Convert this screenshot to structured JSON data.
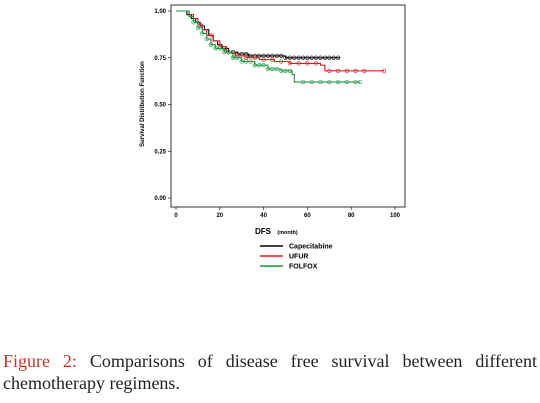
{
  "chart_data": {
    "type": "line",
    "step": true,
    "ylabel": "Survival Distribution Function",
    "xlabel": "DFS",
    "xlabel_unit": "(month)",
    "xlim": [
      0,
      100
    ],
    "ylim": [
      0,
      1
    ],
    "xticks": [
      0,
      20,
      40,
      60,
      80,
      100
    ],
    "yticks": [
      0.0,
      0.25,
      0.5,
      0.75,
      1.0
    ],
    "ytick_labels": [
      "0.00",
      "0.25",
      "0.50",
      "0.75",
      "1.00"
    ],
    "grid": false,
    "legend_position": "below",
    "series": [
      {
        "name": "Capecitabine",
        "color": "#000000",
        "points": [
          [
            0,
            1.0
          ],
          [
            3,
            1.0
          ],
          [
            5,
            0.98
          ],
          [
            7,
            0.96
          ],
          [
            9,
            0.94
          ],
          [
            11,
            0.92
          ],
          [
            13,
            0.9
          ],
          [
            15,
            0.87
          ],
          [
            17,
            0.84
          ],
          [
            19,
            0.82
          ],
          [
            21,
            0.8
          ],
          [
            24,
            0.78
          ],
          [
            28,
            0.77
          ],
          [
            33,
            0.76
          ],
          [
            38,
            0.76
          ],
          [
            44,
            0.76
          ],
          [
            50,
            0.75
          ],
          [
            58,
            0.75
          ],
          [
            66,
            0.75
          ],
          [
            75,
            0.75
          ]
        ],
        "censored": [
          22,
          24,
          26,
          28,
          30,
          32,
          34,
          36,
          38,
          40,
          42,
          44,
          46,
          48,
          50,
          52,
          54,
          56,
          58,
          60,
          62,
          64,
          66,
          68,
          70,
          72,
          74
        ]
      },
      {
        "name": "UFUR",
        "color": "#e31a1c",
        "points": [
          [
            0,
            1.0
          ],
          [
            4,
            1.0
          ],
          [
            6,
            0.98
          ],
          [
            8,
            0.96
          ],
          [
            10,
            0.93
          ],
          [
            12,
            0.9
          ],
          [
            14,
            0.87
          ],
          [
            17,
            0.84
          ],
          [
            20,
            0.81
          ],
          [
            23,
            0.78
          ],
          [
            27,
            0.76
          ],
          [
            32,
            0.75
          ],
          [
            38,
            0.74
          ],
          [
            45,
            0.73
          ],
          [
            52,
            0.72
          ],
          [
            60,
            0.72
          ],
          [
            66,
            0.71
          ],
          [
            68,
            0.68
          ],
          [
            95,
            0.68
          ]
        ],
        "censored": [
          16,
          20,
          24,
          28,
          32,
          36,
          40,
          44,
          48,
          52,
          56,
          60,
          64,
          70,
          74,
          78,
          82,
          86,
          95
        ]
      },
      {
        "name": "FOLFOX",
        "color": "#1a9641",
        "points": [
          [
            0,
            1.0
          ],
          [
            4,
            1.0
          ],
          [
            6,
            0.97
          ],
          [
            8,
            0.94
          ],
          [
            10,
            0.91
          ],
          [
            12,
            0.88
          ],
          [
            14,
            0.85
          ],
          [
            16,
            0.82
          ],
          [
            18,
            0.8
          ],
          [
            22,
            0.78
          ],
          [
            26,
            0.75
          ],
          [
            30,
            0.73
          ],
          [
            36,
            0.71
          ],
          [
            42,
            0.69
          ],
          [
            48,
            0.68
          ],
          [
            53,
            0.66
          ],
          [
            54,
            0.62
          ],
          [
            84,
            0.62
          ]
        ],
        "censored": [
          8,
          10,
          12,
          14,
          16,
          18,
          20,
          22,
          24,
          26,
          28,
          30,
          32,
          34,
          36,
          38,
          40,
          42,
          44,
          46,
          48,
          50,
          52,
          58,
          62,
          66,
          70,
          74,
          78,
          82,
          84
        ]
      }
    ]
  },
  "caption": {
    "label": "Figure 2:",
    "text": "Comparisons of disease free survival between different chemotherapy regimens."
  }
}
